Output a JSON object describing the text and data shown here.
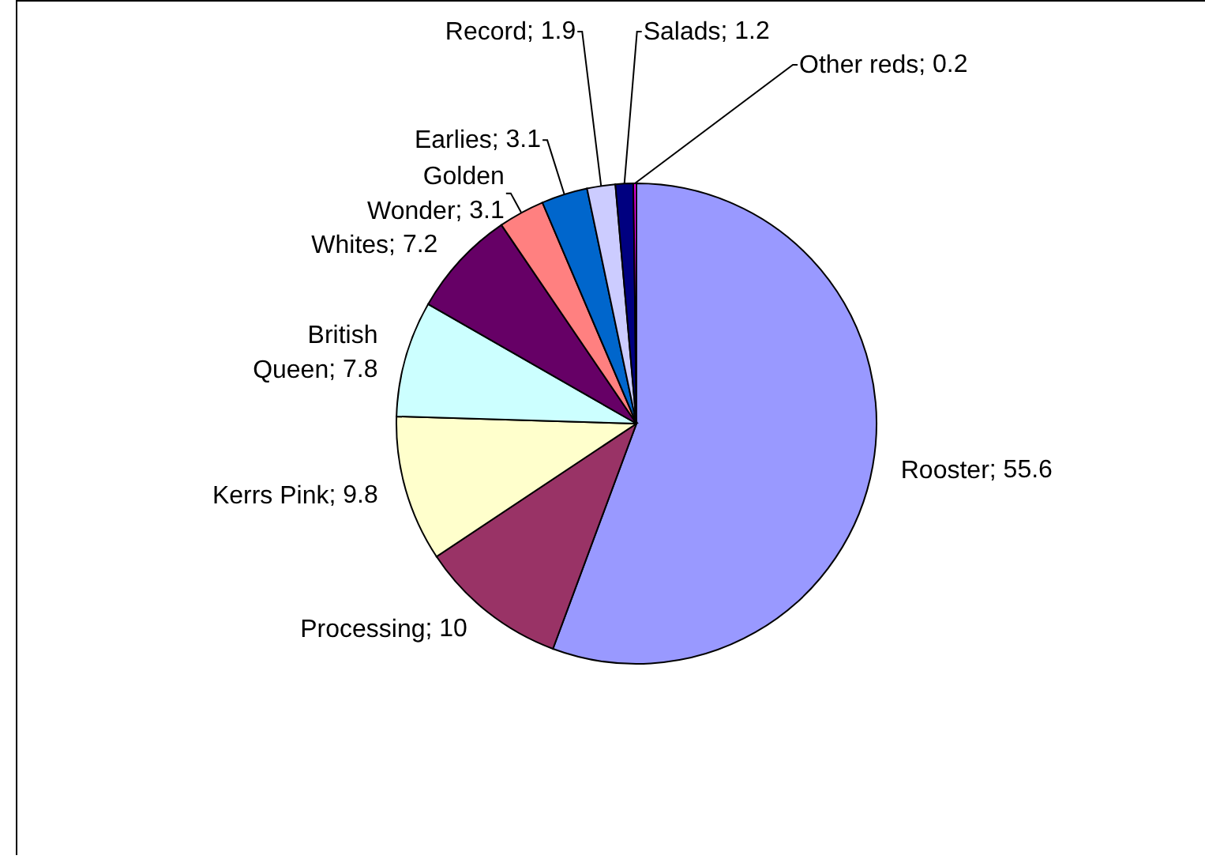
{
  "chart_data": {
    "type": "pie",
    "categories": [
      "Rooster",
      "Processing",
      "Kerrs Pink",
      "British Queen",
      "Whites",
      "Golden Wonder",
      "Earlies",
      "Record",
      "Salads",
      "Other reds"
    ],
    "values": [
      55.6,
      10,
      9.8,
      7.8,
      7.2,
      3.1,
      3.1,
      1.9,
      1.2,
      0.2
    ],
    "colors": [
      "#9999ff",
      "#993366",
      "#ffffcc",
      "#ccffff",
      "#660066",
      "#ff8080",
      "#0066cc",
      "#ccccff",
      "#000080",
      "#ff00ff"
    ],
    "value_labels": [
      "; 55.6",
      "; 10",
      "; 9.8",
      "; 7.8",
      "; 7.2",
      "; 3.1",
      "; 3.1",
      "; 1.9",
      "; 1.2",
      "; 0.2"
    ],
    "legend": false
  }
}
